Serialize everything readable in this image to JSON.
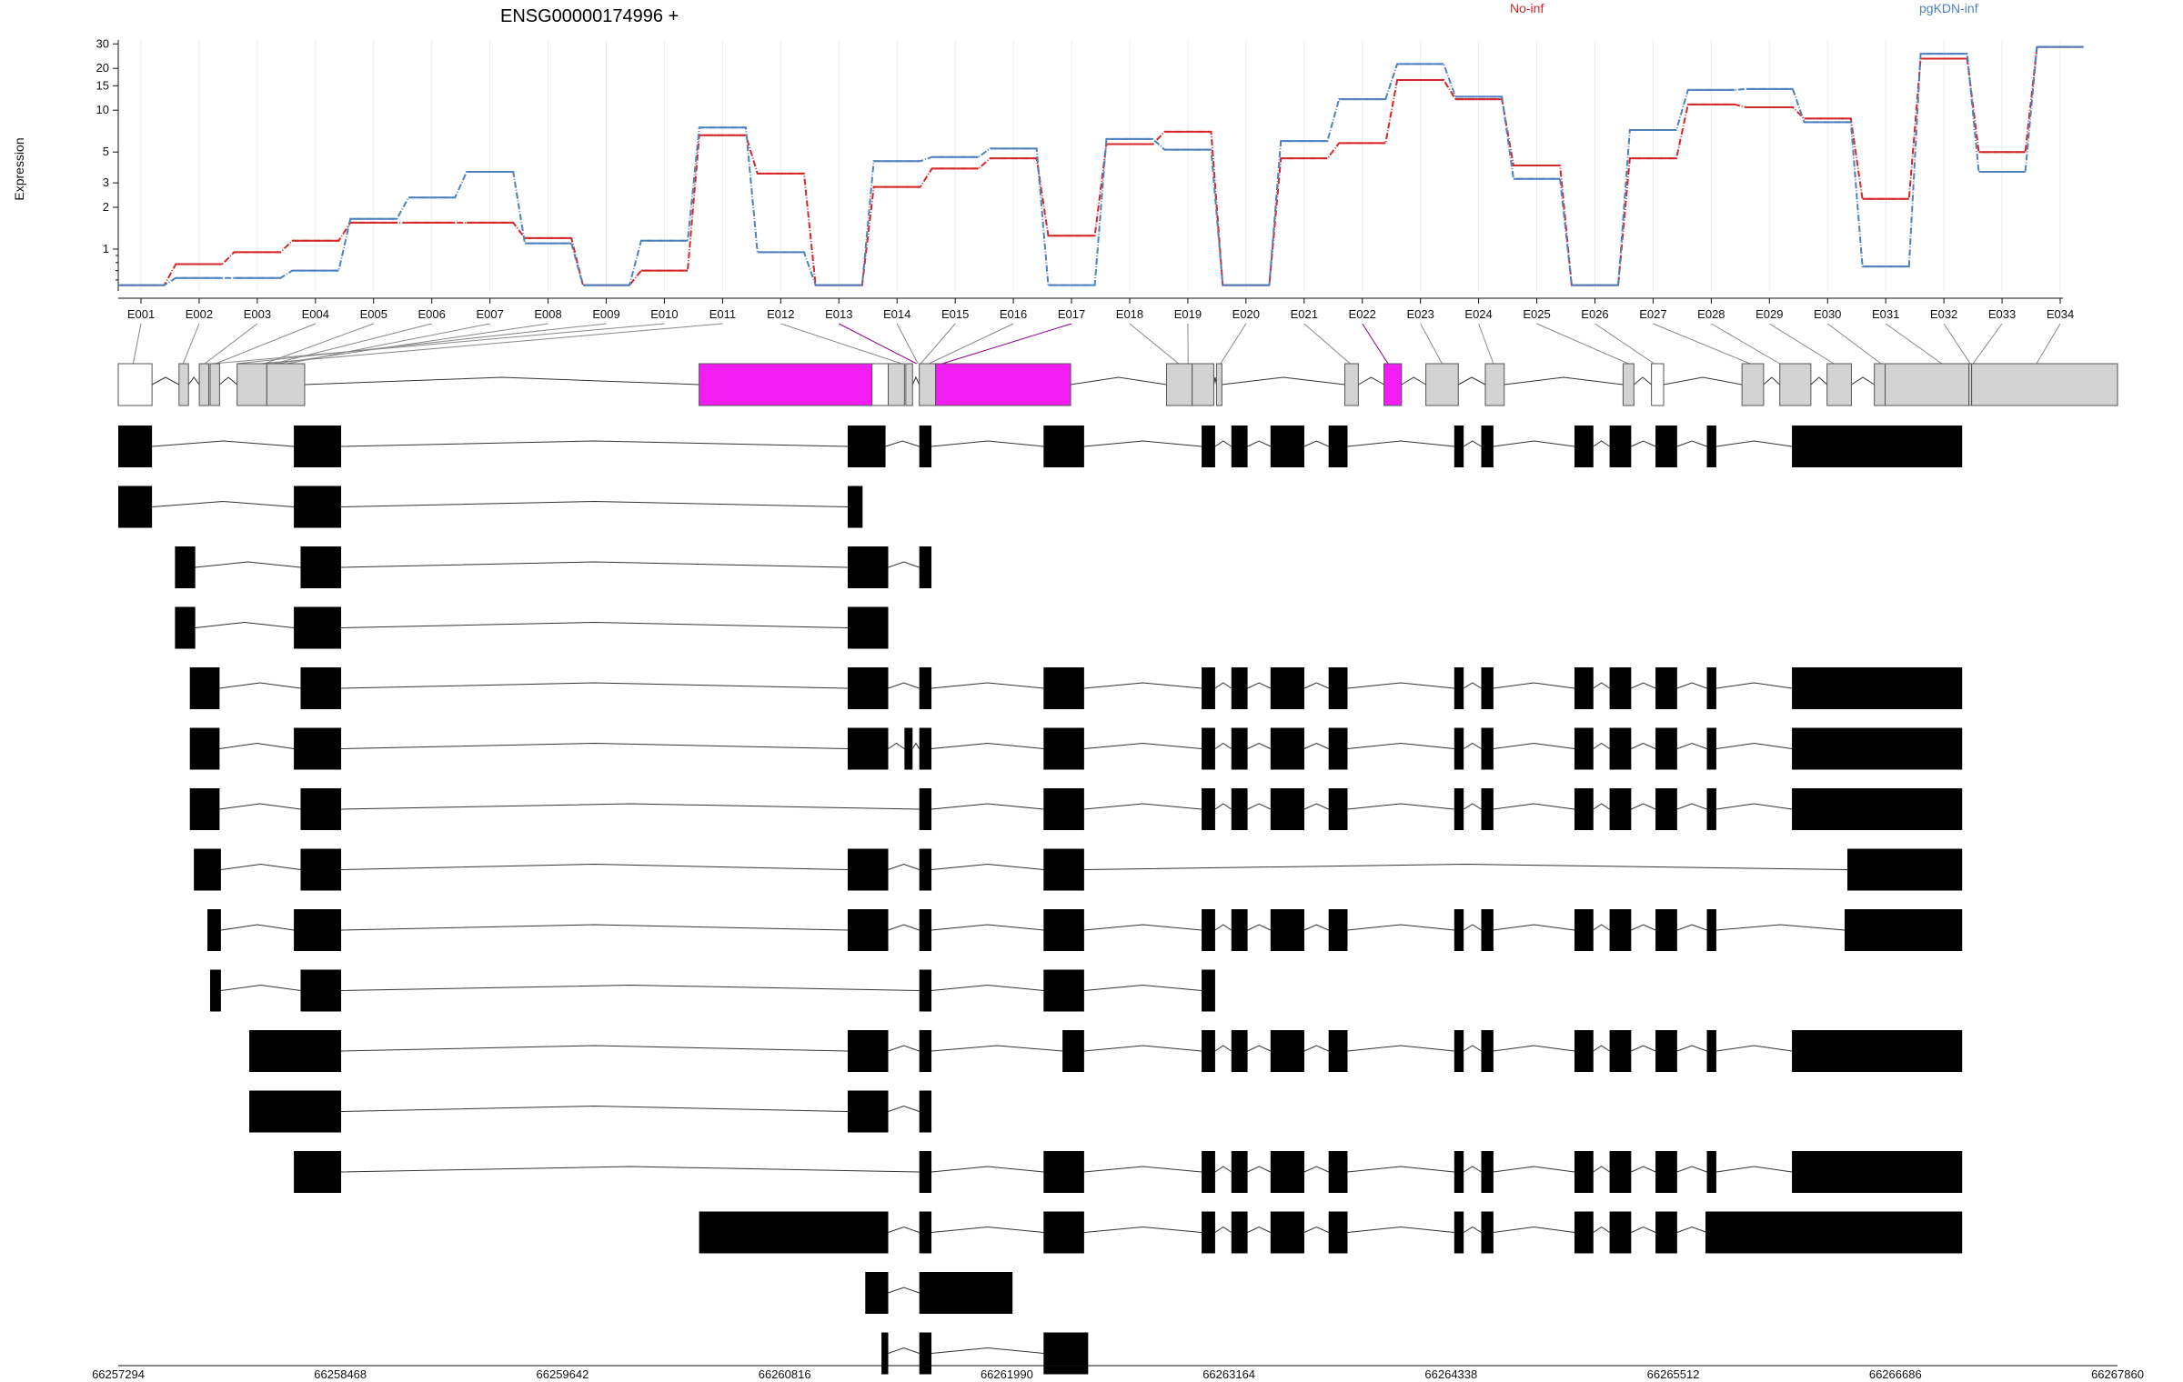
{
  "chart_data": {
    "type": "line",
    "title": "ENSG00000174996 +",
    "ylabel": "Expression",
    "yscale": "log",
    "yticks": [
      1,
      2,
      3,
      5,
      10,
      15,
      20,
      30
    ],
    "ylim": [
      0.5,
      32
    ],
    "grid": "vertical at exon bins",
    "legend_position": "top",
    "exon_bins": [
      "E001",
      "E002",
      "E003",
      "E004",
      "E005",
      "E006",
      "E007",
      "E008",
      "E009",
      "E010",
      "E011",
      "E012",
      "E013",
      "E014",
      "E015",
      "E016",
      "E017",
      "E018",
      "E019",
      "E020",
      "E021",
      "E022",
      "E023",
      "E024",
      "E025",
      "E026",
      "E027",
      "E028",
      "E029",
      "E030",
      "E031",
      "E032",
      "E033",
      "E034"
    ],
    "series": [
      {
        "name": "No-inf",
        "color": "#d62728",
        "values": [
          0.55,
          0.78,
          0.95,
          1.15,
          1.55,
          1.55,
          1.55,
          1.2,
          0.55,
          0.7,
          6.6,
          3.5,
          0.55,
          2.8,
          3.8,
          4.5,
          1.25,
          5.7,
          7.0,
          0.55,
          4.5,
          5.8,
          16.5,
          12.0,
          4.0,
          0.55,
          4.5,
          11.0,
          10.5,
          8.7,
          2.3,
          23.5,
          5.0,
          28.5
        ]
      },
      {
        "name": "pgKDN-inf",
        "color": "#4f81bd",
        "values": [
          0.55,
          0.62,
          0.62,
          0.7,
          1.65,
          2.35,
          3.6,
          1.1,
          0.55,
          1.15,
          7.5,
          0.95,
          0.55,
          4.3,
          4.6,
          5.3,
          0.55,
          6.2,
          5.2,
          0.55,
          6.0,
          12.0,
          21.5,
          12.5,
          3.2,
          0.55,
          7.2,
          14.0,
          14.2,
          8.2,
          0.75,
          25.5,
          3.6,
          28.5
        ]
      }
    ],
    "highlighted_exons": [
      "E013",
      "E017",
      "E022"
    ],
    "coordinates": [
      "66257294",
      "66258468",
      "66259642",
      "66260816",
      "66261990",
      "66263164",
      "66264338",
      "66265512",
      "66266686",
      "66267860"
    ],
    "coord_range": [
      66257294,
      66267860
    ],
    "exon_model": [
      [
        20,
        45
      ],
      [
        65,
        72
      ],
      [
        80,
        87
      ],
      [
        88,
        95
      ],
      [
        108,
        130
      ],
      [
        130,
        158
      ],
      [
        450,
        578
      ],
      [
        578,
        590
      ],
      [
        590,
        602
      ],
      [
        603,
        608
      ],
      [
        613,
        625
      ],
      [
        625,
        725
      ],
      [
        796,
        815
      ],
      [
        815,
        831
      ],
      [
        833,
        837
      ],
      [
        928,
        938
      ],
      [
        957,
        970
      ],
      [
        988,
        1012
      ],
      [
        1032,
        1046
      ],
      [
        1134,
        1142
      ],
      [
        1155,
        1164
      ],
      [
        1222,
        1238
      ],
      [
        1250,
        1273
      ],
      [
        1285,
        1303
      ],
      [
        1320,
        1328
      ],
      [
        1328,
        1390
      ],
      [
        1390,
        1392
      ],
      [
        1392,
        1500
      ]
    ],
    "exon_model_colors": [
      "#ffffff",
      "#d3d3d3",
      "#d3d3d3",
      "#d3d3d3",
      "#d3d3d3",
      "#d3d3d3",
      "#f21df2",
      "#ffffff",
      "#d3d3d3",
      "#d3d3d3",
      "#d3d3d3",
      "#f21df2",
      "#d3d3d3",
      "#d3d3d3",
      "#d3d3d3",
      "#d3d3d3",
      "#f21df2",
      "#d3d3d3",
      "#d3d3d3",
      "#d3d3d3",
      "#ffffff",
      "#d3d3d3",
      "#d3d3d3",
      "#d3d3d3",
      "#d3d3d3",
      "#d3d3d3",
      "#d3d3d3",
      "#d3d3d3"
    ],
    "bin_to_model_x": [
      31,
      68,
      84,
      92,
      128,
      135,
      145,
      137,
      108,
      90,
      125,
      600,
      611,
      612,
      614,
      620,
      630,
      805,
      812,
      836,
      932,
      960,
      1000,
      1038,
      1138,
      1157,
      1228,
      1250,
      1290,
      1325,
      1370,
      1391,
      1393,
      1440
    ],
    "transcripts": [
      [
        [
          20,
          45
        ],
        [
          150,
          185
        ],
        [
          560,
          588
        ],
        [
          613,
          622
        ],
        [
          705,
          735
        ],
        [
          822,
          832
        ],
        [
          844,
          856
        ],
        [
          873,
          898
        ],
        [
          916,
          930
        ],
        [
          1009,
          1016
        ],
        [
          1029,
          1038
        ],
        [
          1098,
          1112
        ],
        [
          1124,
          1140
        ],
        [
          1158,
          1174
        ],
        [
          1196,
          1203
        ],
        [
          1259,
          1385
        ]
      ],
      [
        [
          20,
          45
        ],
        [
          150,
          185
        ],
        [
          560,
          571
        ]
      ],
      [
        [
          62,
          77
        ],
        [
          155,
          185
        ],
        [
          560,
          590
        ],
        [
          613,
          622
        ]
      ],
      [
        [
          62,
          77
        ],
        [
          150,
          185
        ],
        [
          560,
          590
        ]
      ],
      [
        [
          73,
          95
        ],
        [
          155,
          185
        ],
        [
          560,
          590
        ],
        [
          613,
          622
        ],
        [
          705,
          735
        ],
        [
          822,
          832
        ],
        [
          844,
          856
        ],
        [
          873,
          898
        ],
        [
          916,
          930
        ],
        [
          1009,
          1016
        ],
        [
          1029,
          1038
        ],
        [
          1098,
          1112
        ],
        [
          1124,
          1140
        ],
        [
          1158,
          1174
        ],
        [
          1196,
          1203
        ],
        [
          1259,
          1385
        ]
      ],
      [
        [
          73,
          95
        ],
        [
          150,
          185
        ],
        [
          560,
          590
        ],
        [
          602,
          608
        ],
        [
          613,
          622
        ],
        [
          705,
          735
        ],
        [
          822,
          832
        ],
        [
          844,
          856
        ],
        [
          873,
          898
        ],
        [
          916,
          930
        ],
        [
          1009,
          1016
        ],
        [
          1029,
          1038
        ],
        [
          1098,
          1112
        ],
        [
          1124,
          1140
        ],
        [
          1158,
          1174
        ],
        [
          1196,
          1203
        ],
        [
          1259,
          1385
        ]
      ],
      [
        [
          73,
          95
        ],
        [
          155,
          185
        ],
        [
          613,
          622
        ],
        [
          705,
          735
        ],
        [
          822,
          832
        ],
        [
          844,
          856
        ],
        [
          873,
          898
        ],
        [
          916,
          930
        ],
        [
          1009,
          1016
        ],
        [
          1029,
          1038
        ],
        [
          1098,
          1112
        ],
        [
          1124,
          1140
        ],
        [
          1158,
          1174
        ],
        [
          1196,
          1203
        ],
        [
          1259,
          1385
        ]
      ],
      [
        [
          76,
          96
        ],
        [
          155,
          185
        ],
        [
          560,
          590
        ],
        [
          613,
          622
        ],
        [
          705,
          735
        ],
        [
          1300,
          1385
        ]
      ],
      [
        [
          86,
          96
        ],
        [
          150,
          185
        ],
        [
          560,
          590
        ],
        [
          613,
          622
        ],
        [
          705,
          735
        ],
        [
          822,
          832
        ],
        [
          844,
          856
        ],
        [
          873,
          898
        ],
        [
          916,
          930
        ],
        [
          1009,
          1016
        ],
        [
          1029,
          1038
        ],
        [
          1098,
          1112
        ],
        [
          1124,
          1140
        ],
        [
          1158,
          1174
        ],
        [
          1196,
          1203
        ],
        [
          1298,
          1385
        ]
      ],
      [
        [
          88,
          96
        ],
        [
          155,
          185
        ],
        [
          613,
          622
        ],
        [
          705,
          735
        ],
        [
          822,
          832
        ]
      ],
      [
        [
          117,
          185
        ],
        [
          560,
          590
        ],
        [
          613,
          622
        ],
        [
          719,
          735
        ],
        [
          822,
          832
        ],
        [
          844,
          856
        ],
        [
          873,
          898
        ],
        [
          916,
          930
        ],
        [
          1009,
          1016
        ],
        [
          1029,
          1038
        ],
        [
          1098,
          1112
        ],
        [
          1124,
          1140
        ],
        [
          1158,
          1174
        ],
        [
          1196,
          1203
        ],
        [
          1259,
          1385
        ]
      ],
      [
        [
          117,
          185
        ],
        [
          560,
          590
        ],
        [
          613,
          622
        ]
      ],
      [
        [
          150,
          185
        ],
        [
          613,
          622
        ],
        [
          705,
          735
        ],
        [
          822,
          832
        ],
        [
          844,
          856
        ],
        [
          873,
          898
        ],
        [
          916,
          930
        ],
        [
          1009,
          1016
        ],
        [
          1029,
          1038
        ],
        [
          1098,
          1112
        ],
        [
          1124,
          1140
        ],
        [
          1158,
          1174
        ],
        [
          1196,
          1203
        ],
        [
          1259,
          1385
        ]
      ],
      [
        [
          450,
          590
        ],
        [
          613,
          622
        ],
        [
          705,
          735
        ],
        [
          822,
          832
        ],
        [
          844,
          856
        ],
        [
          873,
          898
        ],
        [
          916,
          930
        ],
        [
          1009,
          1016
        ],
        [
          1029,
          1038
        ],
        [
          1098,
          1112
        ],
        [
          1124,
          1140
        ],
        [
          1158,
          1174
        ],
        [
          1196,
          1203
        ],
        [
          1195,
          1385
        ]
      ],
      [
        [
          573,
          590
        ],
        [
          613,
          682
        ]
      ],
      [
        [
          585,
          590
        ],
        [
          613,
          622
        ],
        [
          705,
          738
        ]
      ]
    ]
  }
}
